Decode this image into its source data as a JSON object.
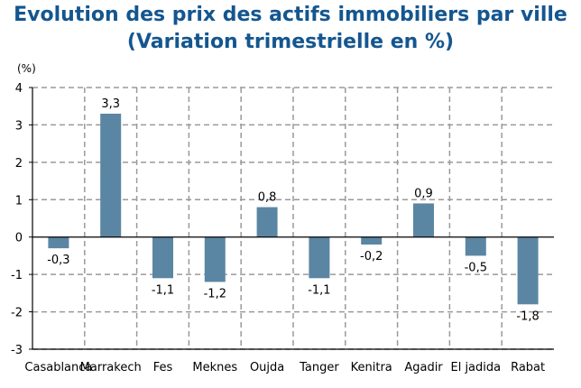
{
  "title": "Evolution des prix des actifs immobiliers par ville",
  "subtitle": "(Variation trimestrielle en %)",
  "chart_data": {
    "type": "bar",
    "title": "Evolution des prix des actifs immobiliers par ville",
    "subtitle": "(Variation trimestrielle en %)",
    "ylabel": "(%)",
    "categories": [
      "Casablanca",
      "Marrakech",
      "Fes",
      "Meknes",
      "Oujda",
      "Tanger",
      "Kenitra",
      "Agadir",
      "El jadida",
      "Rabat"
    ],
    "values": [
      -0.3,
      3.3,
      -1.1,
      -1.2,
      0.8,
      -1.1,
      -0.2,
      0.9,
      -0.5,
      -1.8
    ],
    "data_labels": [
      "-0,3",
      "3,3",
      "-1,1",
      "-1,2",
      "0,8",
      "-1,1",
      "-0,2",
      "0,9",
      "-0,5",
      "-1,8"
    ],
    "yticks": [
      4,
      3,
      2,
      1,
      0,
      -1,
      -2,
      -3
    ],
    "ylim": [
      -3,
      4
    ],
    "grid": true,
    "bar_color": "#5b86a3",
    "grid_color": "#9a9a9a"
  }
}
